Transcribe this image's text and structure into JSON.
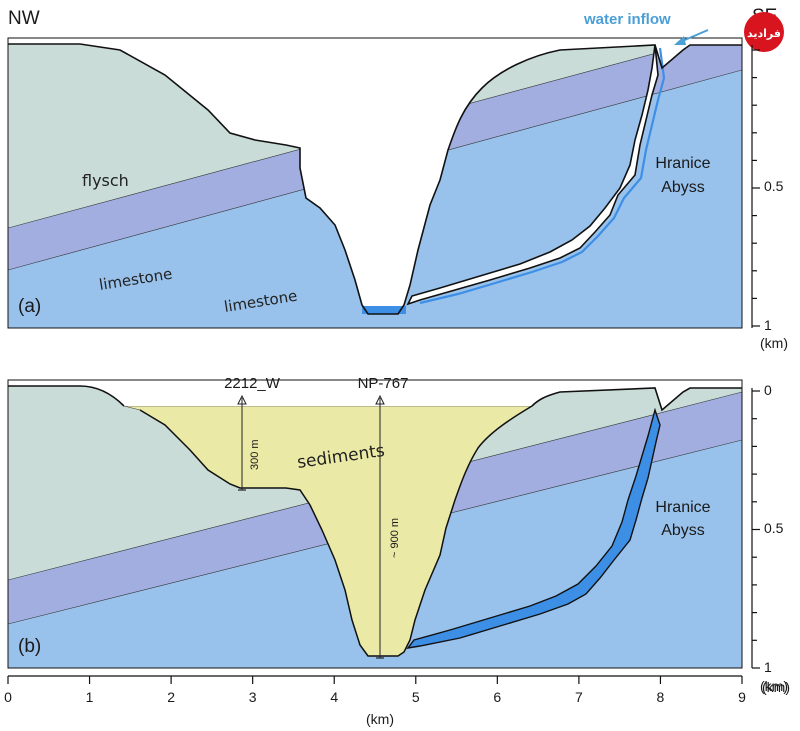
{
  "orientation": {
    "left": "NW",
    "right": "SE"
  },
  "annotation": {
    "water_inflow": "water inflow"
  },
  "badge": {
    "text": "فرادید"
  },
  "panel_a": {
    "label": "(a)",
    "layers": {
      "flysch": "flysch",
      "limestone_upper": "limestone",
      "limestone_lower": "limestone"
    },
    "feature": {
      "line1": "Hranice",
      "line2": "Abyss"
    }
  },
  "panel_b": {
    "label": "(b)",
    "sediments": "sediments",
    "feature": {
      "line1": "Hranice",
      "line2": "Abyss"
    },
    "boreholes": [
      {
        "name": "2212_W",
        "x_km": 2.85,
        "depth_label": "300 m"
      },
      {
        "name": "NP-767",
        "x_km": 4.55,
        "depth_label": "~ 900 m"
      }
    ]
  },
  "depth_axis_a": {
    "ticks": [
      "0.5",
      "1"
    ],
    "unit": "(km)"
  },
  "depth_axis_b": {
    "ticks": [
      "0",
      "0.5",
      "1"
    ],
    "unit": "(km)"
  },
  "distance_axis": {
    "ticks": [
      "0",
      "1",
      "2",
      "3",
      "4",
      "5",
      "6",
      "7",
      "8",
      "9"
    ],
    "unit_right": "(km)",
    "unit_bottom": "(km)"
  },
  "colors": {
    "flysch": "#c9dcd8",
    "limestone_upper": "#a2aee0",
    "limestone_lower": "#98c2ec",
    "sediments": "#ebe9a6",
    "water": "#3d8fe6",
    "water_text": "#4a9fd6",
    "badge": "#d8141e"
  }
}
